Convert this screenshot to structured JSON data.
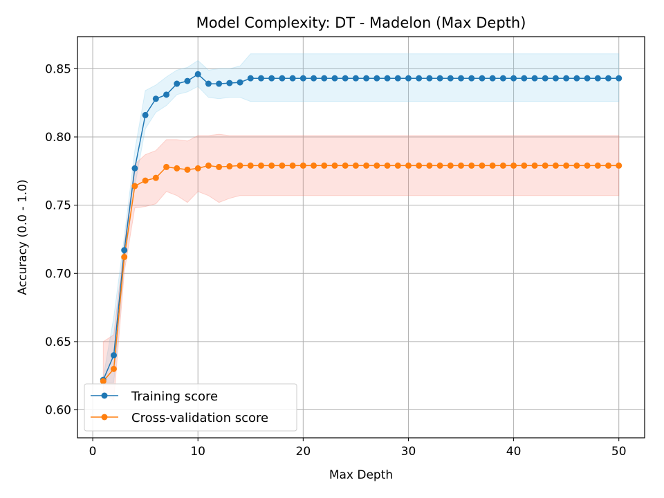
{
  "chart_data": {
    "type": "line",
    "title": "Model Complexity: DT - Madelon (Max Depth)",
    "xlabel": "Max Depth",
    "ylabel": "Accuracy (0.0 - 1.0)",
    "xlim": [
      -1.45,
      52.45
    ],
    "ylim": [
      0.5795,
      0.8735
    ],
    "xticks": [
      0,
      10,
      20,
      30,
      40,
      50
    ],
    "yticks": [
      0.6,
      0.65,
      0.7,
      0.75,
      0.8,
      0.85
    ],
    "grid": true,
    "legend_position": "lower-left",
    "x": [
      1,
      2,
      3,
      4,
      5,
      6,
      7,
      8,
      9,
      10,
      11,
      12,
      13,
      14,
      15,
      16,
      17,
      18,
      19,
      20,
      21,
      22,
      23,
      24,
      25,
      26,
      27,
      28,
      29,
      30,
      31,
      32,
      33,
      34,
      35,
      36,
      37,
      38,
      39,
      40,
      41,
      42,
      43,
      44,
      45,
      46,
      47,
      48,
      49,
      50
    ],
    "series": [
      {
        "name": "Training score",
        "color": "#1f77b4",
        "band_color": "#87ceeb",
        "values": [
          0.622,
          0.64,
          0.717,
          0.777,
          0.816,
          0.828,
          0.831,
          0.839,
          0.841,
          0.846,
          0.839,
          0.839,
          0.8395,
          0.84,
          0.843,
          0.843,
          0.843,
          0.843,
          0.843,
          0.843,
          0.843,
          0.843,
          0.843,
          0.843,
          0.843,
          0.843,
          0.843,
          0.843,
          0.843,
          0.843,
          0.843,
          0.843,
          0.843,
          0.843,
          0.843,
          0.843,
          0.843,
          0.843,
          0.843,
          0.843,
          0.843,
          0.843,
          0.843,
          0.843,
          0.843,
          0.843,
          0.843,
          0.843,
          0.843,
          0.843
        ],
        "upper": [
          0.624,
          0.668,
          0.727,
          0.79,
          0.834,
          0.838,
          0.844,
          0.849,
          0.851,
          0.856,
          0.849,
          0.85,
          0.85,
          0.852,
          0.861,
          0.861,
          0.861,
          0.861,
          0.861,
          0.861,
          0.861,
          0.861,
          0.861,
          0.861,
          0.861,
          0.861,
          0.861,
          0.861,
          0.861,
          0.861,
          0.861,
          0.861,
          0.861,
          0.861,
          0.861,
          0.861,
          0.861,
          0.861,
          0.861,
          0.861,
          0.861,
          0.861,
          0.861,
          0.861,
          0.861,
          0.861,
          0.861,
          0.861,
          0.861,
          0.861
        ],
        "lower": [
          0.62,
          0.62,
          0.707,
          0.764,
          0.806,
          0.818,
          0.823,
          0.831,
          0.833,
          0.837,
          0.829,
          0.828,
          0.829,
          0.829,
          0.826,
          0.826,
          0.826,
          0.826,
          0.826,
          0.826,
          0.826,
          0.826,
          0.826,
          0.826,
          0.826,
          0.826,
          0.826,
          0.826,
          0.826,
          0.826,
          0.826,
          0.826,
          0.826,
          0.826,
          0.826,
          0.826,
          0.826,
          0.826,
          0.826,
          0.826,
          0.826,
          0.826,
          0.826,
          0.826,
          0.826,
          0.826,
          0.826,
          0.826,
          0.826,
          0.826
        ]
      },
      {
        "name": "Cross-validation score",
        "color": "#ff7f0e",
        "band_color": "#fa8072",
        "values": [
          0.621,
          0.63,
          0.712,
          0.764,
          0.768,
          0.77,
          0.778,
          0.777,
          0.776,
          0.777,
          0.779,
          0.778,
          0.7785,
          0.779,
          0.779,
          0.779,
          0.779,
          0.779,
          0.779,
          0.779,
          0.779,
          0.779,
          0.779,
          0.779,
          0.779,
          0.779,
          0.779,
          0.779,
          0.779,
          0.779,
          0.779,
          0.779,
          0.779,
          0.779,
          0.779,
          0.779,
          0.779,
          0.779,
          0.779,
          0.779,
          0.779,
          0.779,
          0.779,
          0.779,
          0.779,
          0.779,
          0.779,
          0.779,
          0.779,
          0.779
        ],
        "upper": [
          0.65,
          0.655,
          0.721,
          0.78,
          0.787,
          0.79,
          0.798,
          0.798,
          0.797,
          0.801,
          0.801,
          0.802,
          0.801,
          0.801,
          0.801,
          0.801,
          0.801,
          0.801,
          0.801,
          0.801,
          0.801,
          0.801,
          0.801,
          0.801,
          0.801,
          0.801,
          0.801,
          0.801,
          0.801,
          0.801,
          0.801,
          0.801,
          0.801,
          0.801,
          0.801,
          0.801,
          0.801,
          0.801,
          0.801,
          0.801,
          0.801,
          0.801,
          0.801,
          0.801,
          0.801,
          0.801,
          0.801,
          0.801,
          0.801,
          0.801
        ],
        "lower": [
          0.612,
          0.607,
          0.701,
          0.748,
          0.749,
          0.751,
          0.76,
          0.757,
          0.752,
          0.76,
          0.757,
          0.752,
          0.755,
          0.757,
          0.757,
          0.757,
          0.757,
          0.757,
          0.757,
          0.757,
          0.757,
          0.757,
          0.757,
          0.757,
          0.757,
          0.757,
          0.757,
          0.757,
          0.757,
          0.757,
          0.757,
          0.757,
          0.757,
          0.757,
          0.757,
          0.757,
          0.757,
          0.757,
          0.757,
          0.757,
          0.757,
          0.757,
          0.757,
          0.757,
          0.757,
          0.757,
          0.757,
          0.757,
          0.757,
          0.757
        ]
      }
    ]
  }
}
